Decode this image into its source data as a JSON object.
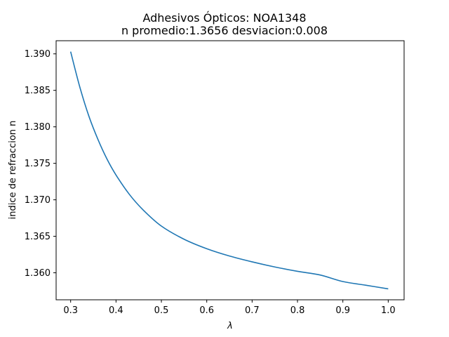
{
  "chart_data": {
    "type": "line",
    "title": "Adhesivos Ópticos: NOA1348",
    "subtitle": "n promedio:1.3656 desviacion:0.008",
    "xlabel": "λ",
    "ylabel": "indice de refraccion n",
    "xlim": [
      0.268,
      1.035
    ],
    "ylim": [
      1.3563,
      1.3918
    ],
    "xticks": [
      0.3,
      0.4,
      0.5,
      0.6,
      0.7,
      0.8,
      0.9,
      1.0
    ],
    "xtick_labels": [
      "0.3",
      "0.4",
      "0.5",
      "0.6",
      "0.7",
      "0.8",
      "0.9",
      "1.0"
    ],
    "yticks": [
      1.36,
      1.365,
      1.37,
      1.375,
      1.38,
      1.385,
      1.39
    ],
    "ytick_labels": [
      "1.360",
      "1.365",
      "1.370",
      "1.375",
      "1.380",
      "1.385",
      "1.390"
    ],
    "grid": false,
    "line_color": "#1f77b4",
    "series": [
      {
        "x": [
          0.3,
          0.32,
          0.34,
          0.36,
          0.38,
          0.4,
          0.43,
          0.46,
          0.5,
          0.55,
          0.6,
          0.65,
          0.7,
          0.75,
          0.8,
          0.85,
          0.9,
          0.95,
          1.0
        ],
        "values": [
          1.3903,
          1.3855,
          1.3815,
          1.3783,
          1.3756,
          1.3734,
          1.3707,
          1.3686,
          1.3664,
          1.3646,
          1.3633,
          1.3623,
          1.3615,
          1.3608,
          1.3602,
          1.3597,
          1.3588,
          1.3583,
          1.3578
        ]
      }
    ]
  }
}
